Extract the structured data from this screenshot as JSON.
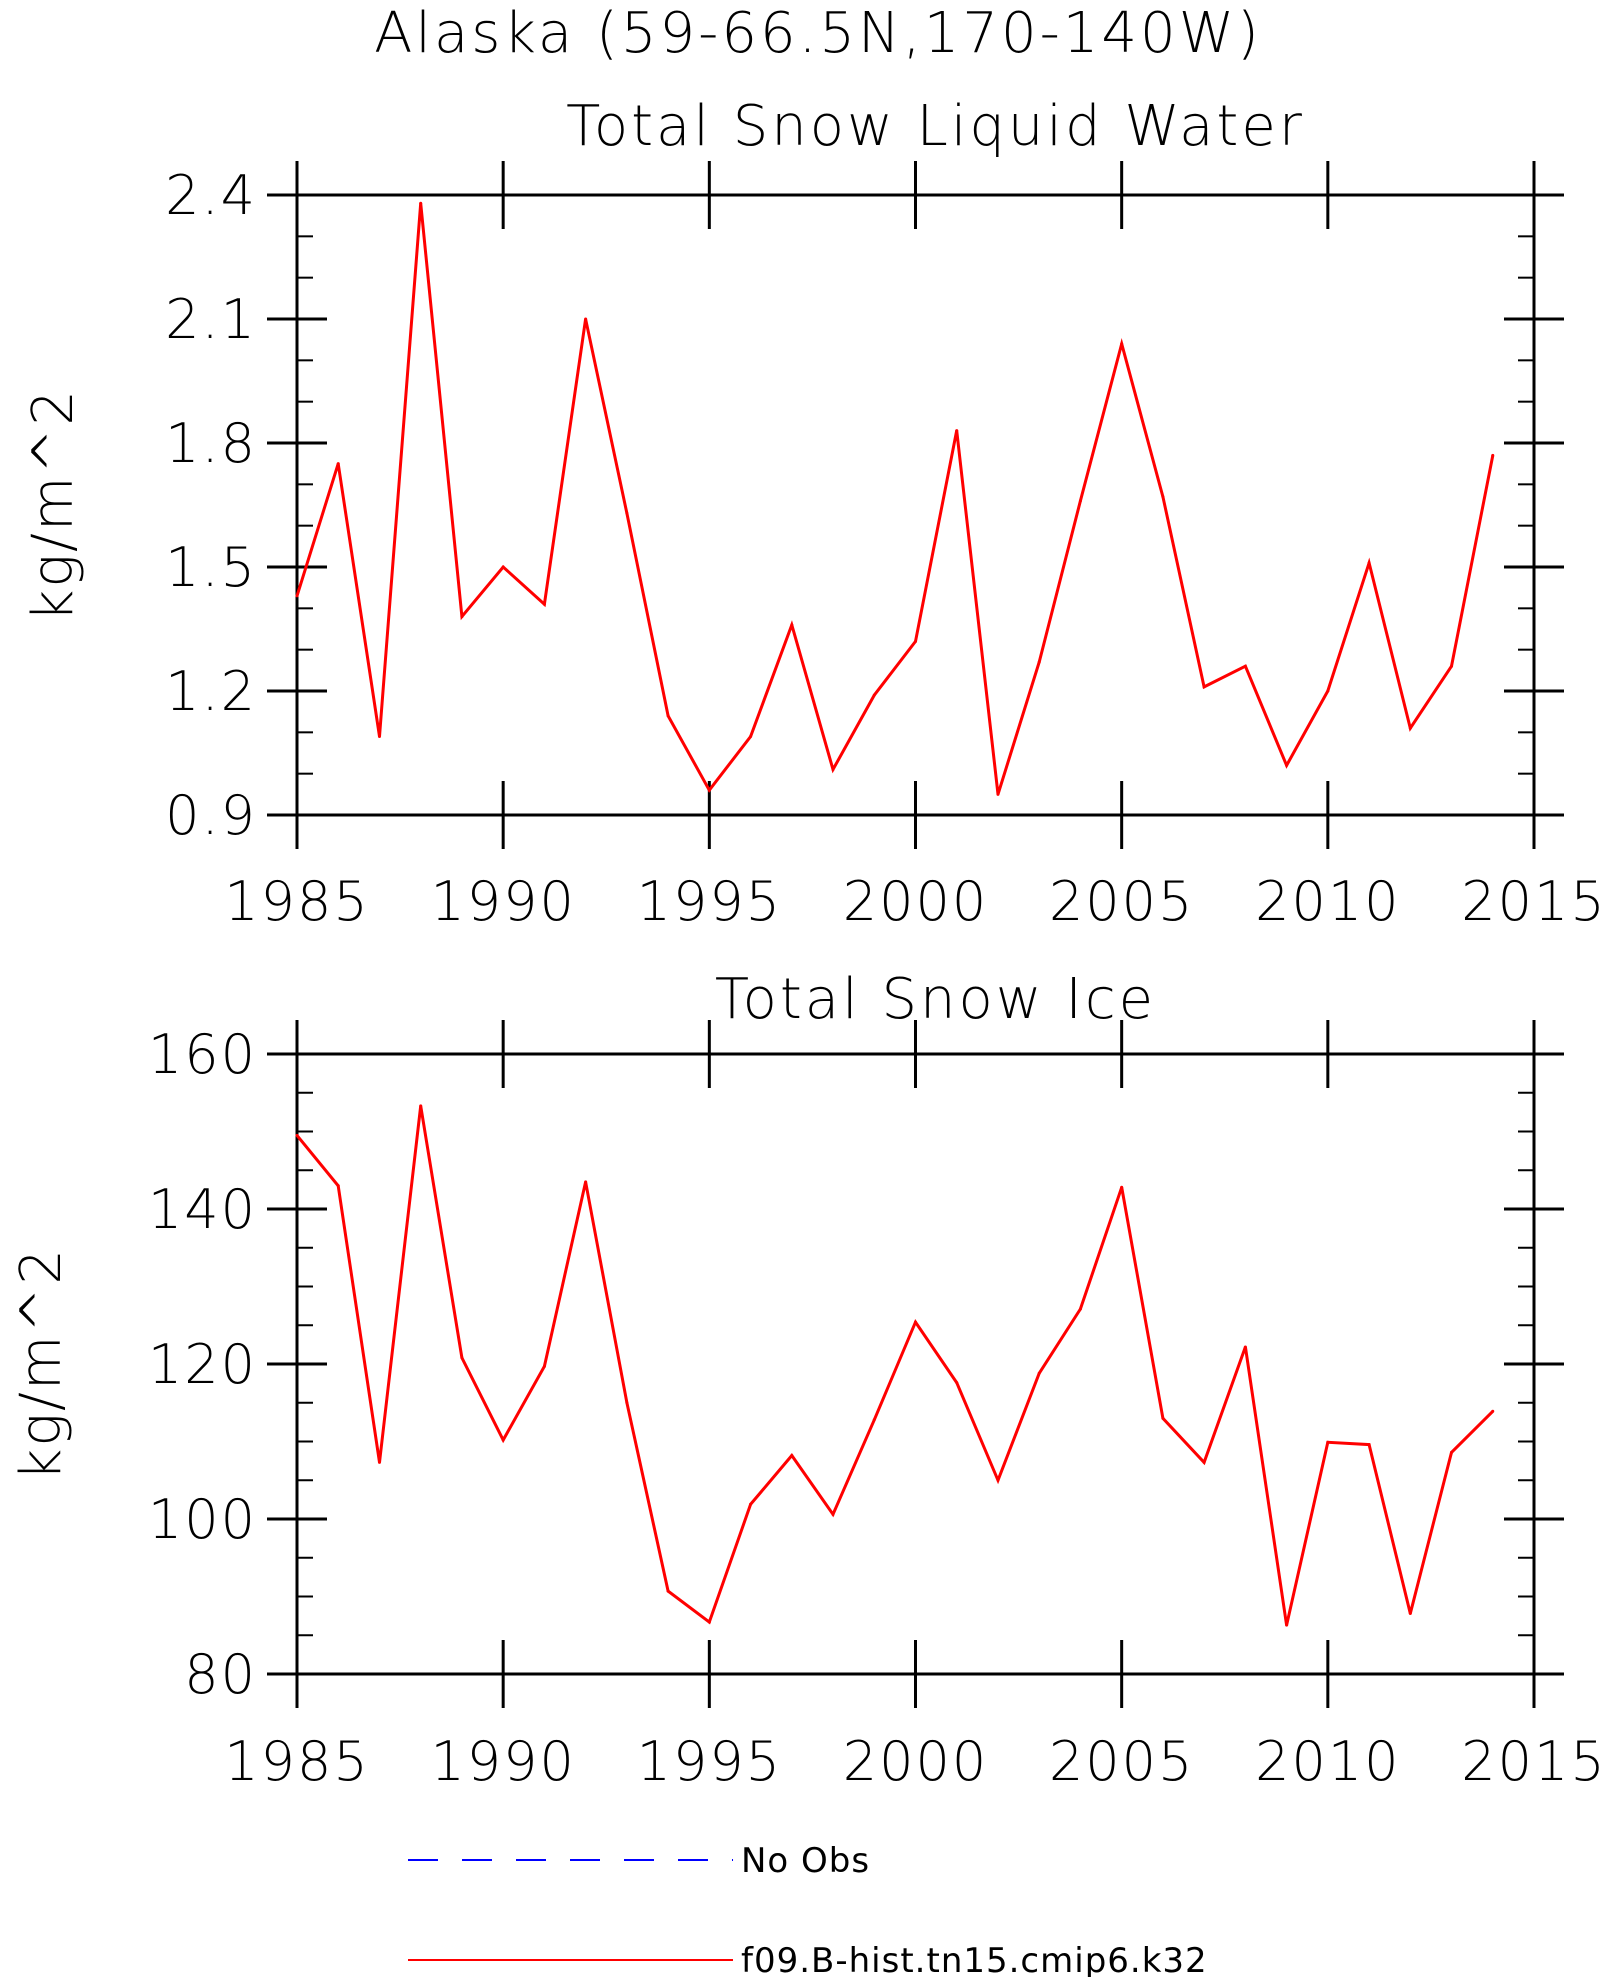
{
  "figure_title": "Alaska (59-66.5N,170-140W)",
  "legend": [
    {
      "label": "No Obs",
      "color": "#0000ff",
      "style": "dashed"
    },
    {
      "label": "f09.B-hist.tn15.cmip6.k32",
      "color": "#ff0000",
      "style": "solid"
    }
  ],
  "chart_data": [
    {
      "type": "line",
      "title": "Total Snow Liquid Water",
      "ylabel": "kg/m^2",
      "xlim": [
        1985,
        2015
      ],
      "ylim": [
        0.9,
        2.4
      ],
      "xticks": [
        1985,
        1990,
        1995,
        2000,
        2005,
        2010,
        2015
      ],
      "xtick_labels": [
        "1985",
        "1990",
        "1995",
        "2000",
        "2005",
        "2010",
        "2015"
      ],
      "yticks": [
        0.9,
        1.2,
        1.5,
        1.8,
        2.1,
        2.4
      ],
      "ytick_labels": [
        "0.9",
        "1.2",
        "1.5",
        "1.8",
        "2.1",
        "2.4"
      ],
      "yminor": 0.1,
      "series": [
        {
          "name": "f09.B-hist.tn15.cmip6.k32",
          "color": "#ff0000",
          "x": [
            1985,
            1986,
            1987,
            1988,
            1989,
            1990,
            1991,
            1992,
            1993,
            1994,
            1995,
            1996,
            1997,
            1998,
            1999,
            2000,
            2001,
            2002,
            2003,
            2004,
            2005,
            2006,
            2007,
            2008,
            2009,
            2010,
            2011,
            2012,
            2013,
            2014
          ],
          "y": [
            1.43,
            1.75,
            1.09,
            2.38,
            1.38,
            1.5,
            1.41,
            2.1,
            1.63,
            1.14,
            0.96,
            1.09,
            1.36,
            1.01,
            1.19,
            1.32,
            1.83,
            0.95,
            1.27,
            1.66,
            2.04,
            1.67,
            1.21,
            1.26,
            1.02,
            1.2,
            1.51,
            1.11,
            1.26,
            1.77
          ]
        }
      ]
    },
    {
      "type": "line",
      "title": "Total Snow Ice",
      "ylabel": "kg/m^2",
      "xlim": [
        1985,
        2015
      ],
      "ylim": [
        80,
        160
      ],
      "xticks": [
        1985,
        1990,
        1995,
        2000,
        2005,
        2010,
        2015
      ],
      "xtick_labels": [
        "1985",
        "1990",
        "1995",
        "2000",
        "2005",
        "2010",
        "2015"
      ],
      "yticks": [
        80,
        100,
        120,
        140,
        160
      ],
      "ytick_labels": [
        "80",
        "100",
        "120",
        "140",
        "160"
      ],
      "yminor": 5,
      "series": [
        {
          "name": "f09.B-hist.tn15.cmip6.k32",
          "color": "#ff0000",
          "x": [
            1985,
            1986,
            1987,
            1988,
            1989,
            1990,
            1991,
            1992,
            1993,
            1994,
            1995,
            1996,
            1997,
            1998,
            1999,
            2000,
            2001,
            2002,
            2003,
            2004,
            2005,
            2006,
            2007,
            2008,
            2009,
            2010,
            2011,
            2012,
            2013,
            2014
          ],
          "y": [
            149.5,
            143.0,
            107.3,
            153.3,
            120.8,
            110.2,
            119.7,
            143.5,
            115.0,
            90.7,
            86.7,
            101.9,
            108.2,
            100.6,
            112.8,
            125.4,
            117.6,
            105.0,
            118.8,
            127.1,
            142.8,
            113.0,
            107.3,
            122.2,
            86.3,
            109.9,
            109.6,
            87.8,
            108.6,
            113.9
          ]
        }
      ]
    }
  ]
}
